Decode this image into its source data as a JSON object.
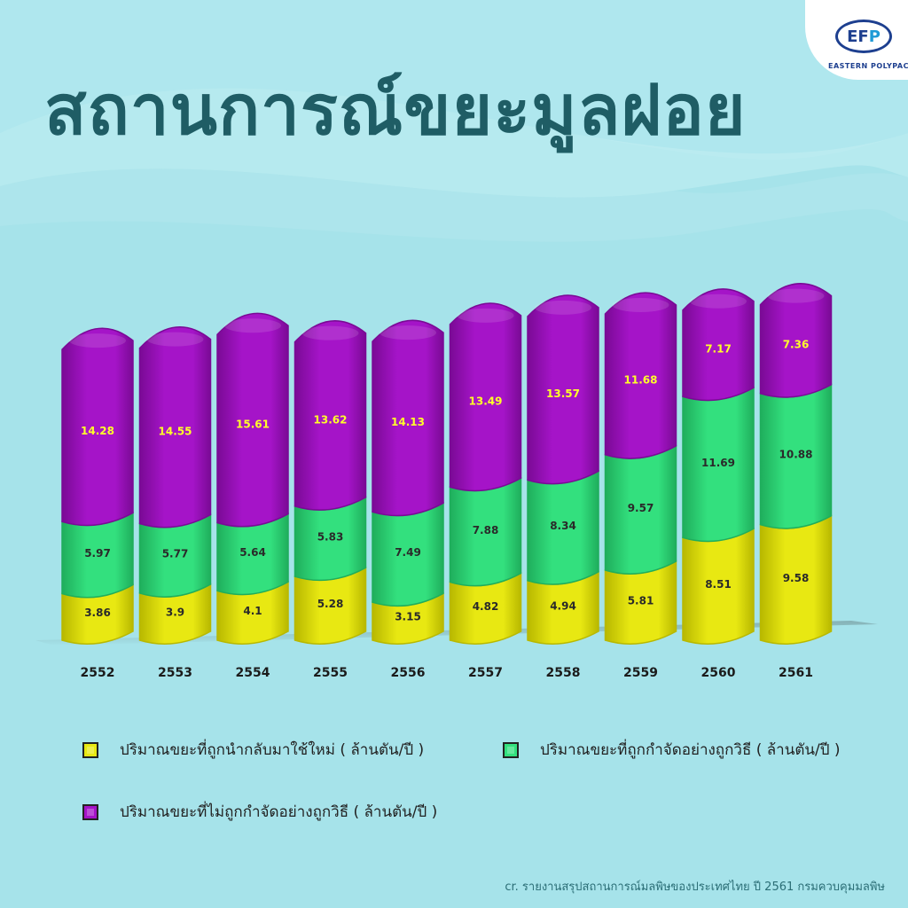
{
  "title": "สถานการณ์ขยะมูลฝอย",
  "logo": {
    "mark_left": "EF",
    "mark_right": "P",
    "text": "EASTERN POLYPACH"
  },
  "colors": {
    "recycled": "#e8e812",
    "disposed_properly": "#33e07e",
    "not_disposed_properly": "#a514c8",
    "label_on_purple": "#ffff2a",
    "label_dark": "#2a2a2a"
  },
  "legend": [
    {
      "key": "recycled",
      "label": "ปริมาณขยะที่ถูกนำกลับมาใช้ใหม่ ( ล้านตัน/ปี )",
      "color": "#e8e812"
    },
    {
      "key": "disposed_properly",
      "label": "ปริมาณขยะที่ถูกกำจัดอย่างถูกวิธี ( ล้านตัน/ปี )",
      "color": "#33e07e"
    },
    {
      "key": "not_disposed_properly",
      "label": "ปริมาณขยะที่ไม่ถูกกำจัดอย่างถูกวิธี ( ล้านตัน/ปี )",
      "color": "#a514c8"
    }
  ],
  "chart_data": {
    "type": "bar",
    "stacked": true,
    "categories": [
      "2552",
      "2553",
      "2554",
      "2555",
      "2556",
      "2557",
      "2558",
      "2559",
      "2560",
      "2561"
    ],
    "series": [
      {
        "name": "ปริมาณขยะที่ถูกนำกลับมาใช้ใหม่ ( ล้านตัน/ปี )",
        "values": [
          3.86,
          3.9,
          4.1,
          5.28,
          3.15,
          4.82,
          4.94,
          5.81,
          8.51,
          9.58
        ]
      },
      {
        "name": "ปริมาณขยะที่ถูกกำจัดอย่างถูกวิธี ( ล้านตัน/ปี )",
        "values": [
          5.97,
          5.77,
          5.64,
          5.83,
          7.49,
          7.88,
          8.34,
          9.57,
          11.69,
          10.88
        ]
      },
      {
        "name": "ปริมาณขยะที่ไม่ถูกกำจัดอย่างถูกวิธี ( ล้านตัน/ปี )",
        "values": [
          14.28,
          14.55,
          15.61,
          13.62,
          14.13,
          13.49,
          13.57,
          11.68,
          7.17,
          7.36
        ]
      }
    ],
    "data_labels": [
      [
        "3.86",
        "3.9",
        "4.1",
        "5.28",
        "3.15",
        "4.82",
        "4.94",
        "5.81",
        "8.51",
        "9.58"
      ],
      [
        "5.97",
        "5.77",
        "5.64",
        "5.83",
        "7.49",
        "7.88",
        "8.34",
        "9.57",
        "11.69",
        "10.88"
      ],
      [
        "14.28",
        "14.55",
        "15.61",
        "13.62",
        "14.13",
        "13.49",
        "13.57",
        "11.68",
        "7.17",
        "7.36"
      ]
    ],
    "ylim": [
      0,
      30
    ],
    "grid": false,
    "legend_position": "bottom"
  },
  "source": "cr. รายงานสรุปสถานการณ์มลพิษของประเทศไทย ปี 2561 กรมควบคุมมลพิษ"
}
